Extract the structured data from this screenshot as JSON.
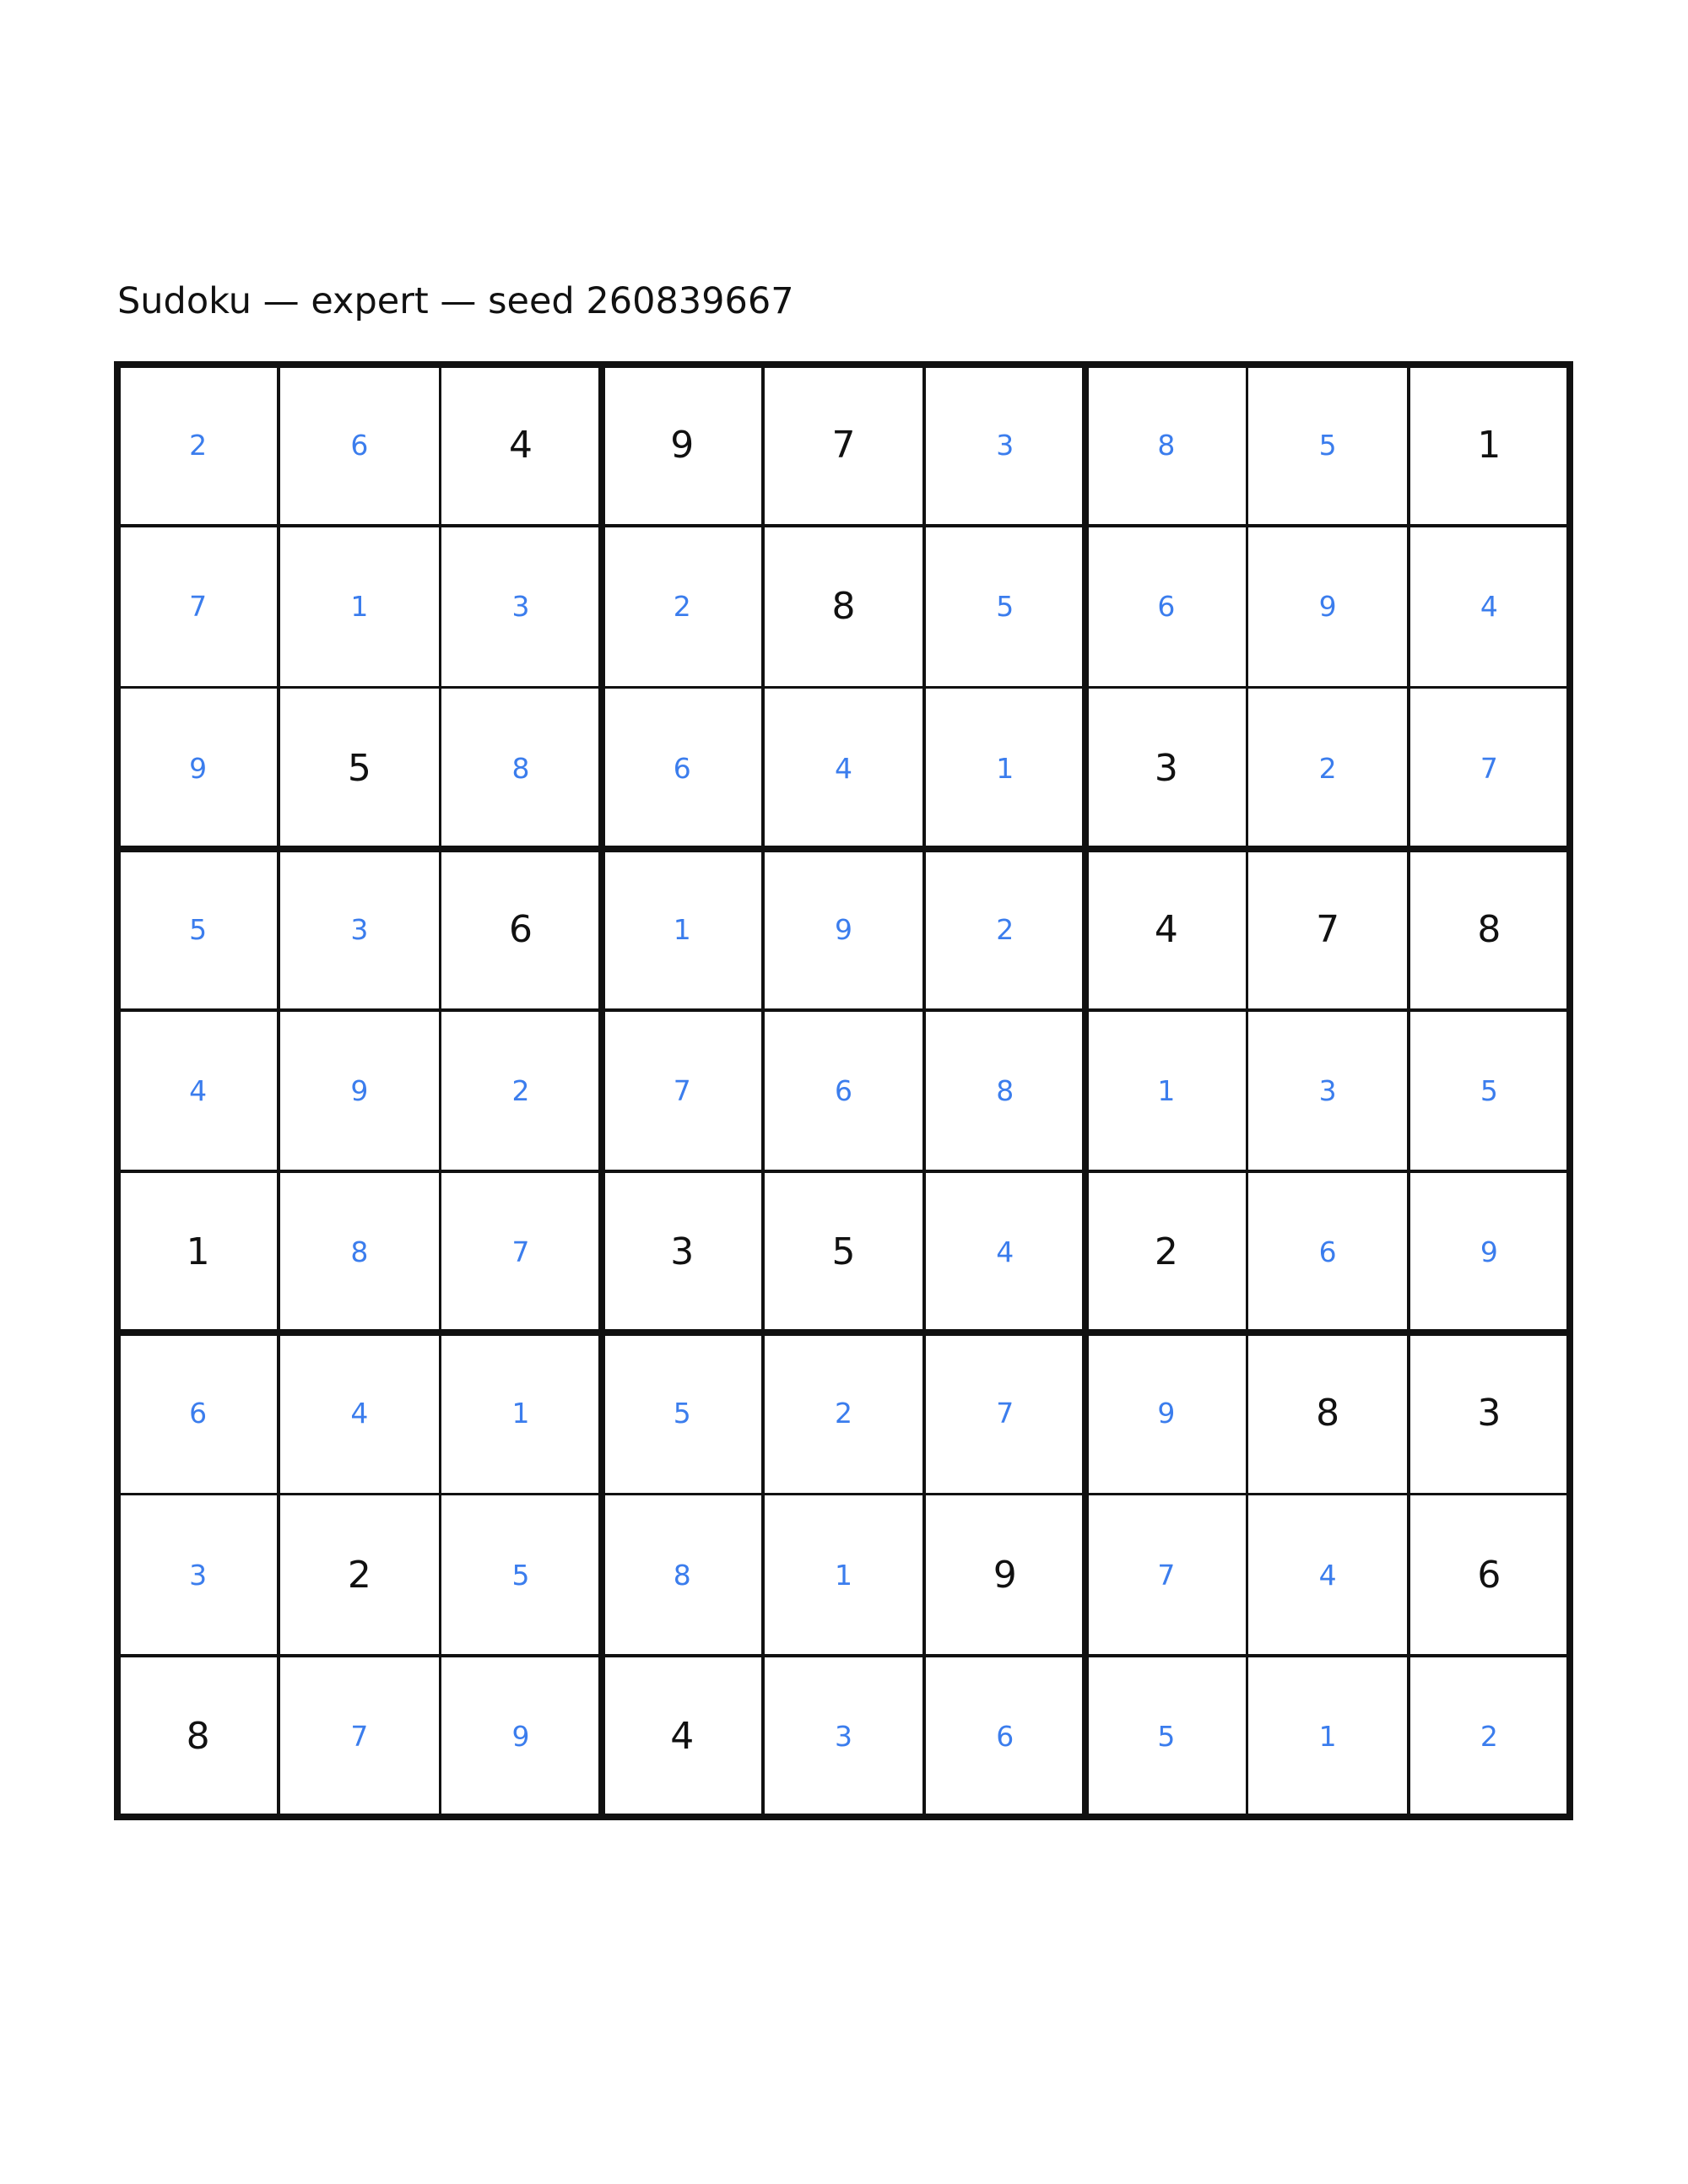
{
  "title": "Sudoku — expert — seed 260839667",
  "colors": {
    "given": "#111111",
    "filled": "#3b7ded",
    "grid": "#111111"
  },
  "grid": [
    [
      2,
      6,
      4,
      9,
      7,
      3,
      8,
      5,
      1
    ],
    [
      7,
      1,
      3,
      2,
      8,
      5,
      6,
      9,
      4
    ],
    [
      9,
      5,
      8,
      6,
      4,
      1,
      3,
      2,
      7
    ],
    [
      5,
      3,
      6,
      1,
      9,
      2,
      4,
      7,
      8
    ],
    [
      4,
      9,
      2,
      7,
      6,
      8,
      1,
      3,
      5
    ],
    [
      1,
      8,
      7,
      3,
      5,
      4,
      2,
      6,
      9
    ],
    [
      6,
      4,
      1,
      5,
      2,
      7,
      9,
      8,
      3
    ],
    [
      3,
      2,
      5,
      8,
      1,
      9,
      7,
      4,
      6
    ],
    [
      8,
      7,
      9,
      4,
      3,
      6,
      5,
      1,
      2
    ]
  ],
  "givens": [
    "001110001",
    "000010000",
    "010000100",
    "001000111",
    "000000000",
    "100110100",
    "000000011",
    "010001001",
    "100100000"
  ]
}
